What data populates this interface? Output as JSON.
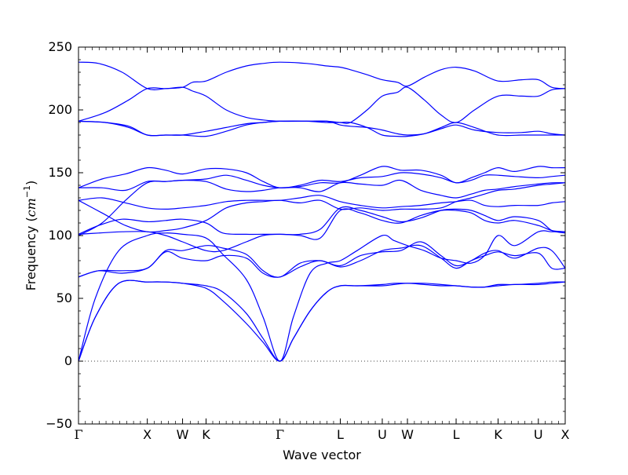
{
  "chart_data": {
    "type": "line",
    "title": "",
    "xlabel": "Wave vector",
    "ylabel_text": "Frequency (",
    "ylabel_unit": "cm",
    "ylabel_exp": "−1",
    "ylabel_close": ")",
    "ylim": [
      -50,
      250
    ],
    "y_ticks": [
      -50,
      0,
      50,
      100,
      150,
      200,
      250
    ],
    "y_tick_labels": [
      "−50",
      "0",
      "50",
      "100",
      "150",
      "200",
      "250"
    ],
    "xlim": [
      0,
      14.5
    ],
    "high_symmetry_points": [
      {
        "label": "Γ",
        "x": 0
      },
      {
        "label": "X",
        "x": 2.05
      },
      {
        "label": "W",
        "x": 3.1
      },
      {
        "label": "K",
        "x": 3.8
      },
      {
        "label": "Γ",
        "x": 6.0
      },
      {
        "label": "L",
        "x": 7.8
      },
      {
        "label": "U",
        "x": 9.05
      },
      {
        "label": "W",
        "x": 9.8
      },
      {
        "label": "L",
        "x": 11.25
      },
      {
        "label": "K",
        "x": 12.5
      },
      {
        "label": "U",
        "x": 13.7
      },
      {
        "label": "X",
        "x": 14.5
      }
    ],
    "zero_line": {
      "y": 0,
      "style": "dotted"
    },
    "line_color": "#0000ff",
    "series": [
      {
        "x": [
          0,
          0.5,
          1.2,
          2.05,
          2.6,
          3.1,
          3.8,
          4.3,
          5.0,
          5.5,
          6.0,
          6.4,
          6.9,
          7.4,
          7.8,
          8.3,
          9.05,
          9.4,
          9.8,
          10.3,
          10.8,
          11.25,
          11.7,
          12.1,
          12.5,
          13.0,
          13.7,
          14.1,
          14.5
        ],
        "y": [
          0,
          35,
          62,
          63,
          63,
          62,
          58,
          48,
          30,
          15,
          0,
          18,
          40,
          55,
          60,
          60,
          60,
          61,
          62,
          61,
          60,
          60,
          59,
          59,
          60,
          61,
          61,
          62,
          63
        ]
      },
      {
        "x": [
          0,
          0.5,
          1.2,
          2.05,
          2.6,
          3.1,
          3.8,
          4.3,
          5.0,
          5.5,
          6.0,
          6.4,
          6.9,
          7.4,
          7.8,
          8.3,
          9.05,
          9.4,
          9.8,
          10.3,
          10.8,
          11.25,
          11.7,
          12.1,
          12.5,
          13.0,
          13.7,
          14.1,
          14.5
        ],
        "y": [
          0,
          35,
          62,
          63,
          63,
          62,
          60,
          55,
          38,
          18,
          0,
          18,
          40,
          55,
          60,
          60,
          61,
          62,
          62,
          62,
          61,
          60,
          59,
          59,
          61,
          61,
          62,
          63,
          63
        ]
      },
      {
        "x": [
          0,
          0.5,
          1.2,
          2.05,
          2.6,
          3.1,
          3.8,
          4.3,
          5.0,
          5.5,
          6.0,
          6.4,
          6.9,
          7.4,
          7.8,
          8.3,
          9.05,
          9.4,
          9.8,
          10.3,
          10.8,
          11.25,
          11.7,
          12.1,
          12.5,
          13.0,
          13.7,
          14.1,
          14.5
        ],
        "y": [
          0,
          50,
          88,
          100,
          102,
          101,
          98,
          85,
          65,
          35,
          0,
          35,
          70,
          78,
          80,
          88,
          100,
          96,
          92,
          88,
          82,
          80,
          78,
          84,
          100,
          92,
          103,
          103,
          103
        ]
      },
      {
        "x": [
          0,
          0.6,
          1.3,
          2.05,
          2.6,
          3.1,
          3.8,
          4.3,
          5.0,
          5.5,
          6.0,
          6.6,
          7.2,
          7.8,
          8.4,
          9.05,
          9.6,
          10.2,
          10.8,
          11.25,
          11.7,
          12.1,
          12.5,
          13.0,
          13.7,
          14.1,
          14.5
        ],
        "y": [
          67,
          72,
          70,
          74,
          87,
          82,
          80,
          84,
          82,
          70,
          67,
          75,
          80,
          75,
          80,
          88,
          90,
          92,
          82,
          74,
          80,
          84,
          87,
          84,
          86,
          74,
          74
        ]
      },
      {
        "x": [
          0,
          0.6,
          1.3,
          2.05,
          2.6,
          3.1,
          3.8,
          4.3,
          5.0,
          5.5,
          6.0,
          6.6,
          7.2,
          7.8,
          8.4,
          9.05,
          9.6,
          10.2,
          10.8,
          11.25,
          11.7,
          12.1,
          12.5,
          13.0,
          13.7,
          14.1,
          14.5
        ],
        "y": [
          67,
          72,
          72,
          74,
          88,
          88,
          92,
          90,
          85,
          72,
          67,
          78,
          80,
          76,
          84,
          87,
          88,
          95,
          84,
          76,
          80,
          86,
          88,
          82,
          90,
          88,
          74
        ]
      },
      {
        "x": [
          0,
          0.6,
          1.3,
          2.05,
          2.6,
          3.1,
          3.8,
          4.3,
          5.0,
          5.5,
          6.0,
          6.6,
          7.2,
          7.8,
          8.4,
          9.05,
          9.6,
          10.2,
          10.8,
          11.25,
          11.7,
          12.1,
          12.5,
          13.0,
          13.7,
          14.1,
          14.5
        ],
        "y": [
          101,
          102,
          103,
          103,
          100,
          95,
          88,
          88,
          95,
          100,
          101,
          100,
          98,
          120,
          118,
          112,
          110,
          116,
          120,
          120,
          118,
          112,
          110,
          112,
          108,
          104,
          103
        ]
      },
      {
        "x": [
          0,
          0.6,
          1.3,
          2.05,
          2.6,
          3.1,
          3.8,
          4.3,
          5.0,
          5.5,
          6.0,
          6.6,
          7.2,
          7.8,
          8.4,
          9.05,
          9.6,
          10.2,
          10.8,
          11.25,
          11.7,
          12.1,
          12.5,
          13.0,
          13.7,
          14.1,
          14.5
        ],
        "y": [
          101,
          108,
          113,
          111,
          112,
          113,
          110,
          102,
          101,
          101,
          101,
          101,
          105,
          122,
          120,
          115,
          111,
          114,
          120,
          121,
          120,
          116,
          112,
          115,
          112,
          104,
          102
        ]
      },
      {
        "x": [
          0,
          0.7,
          1.4,
          2.05,
          2.6,
          3.1,
          3.8,
          4.4,
          5.0,
          5.5,
          6.0,
          6.6,
          7.2,
          7.8,
          8.4,
          9.05,
          9.6,
          10.2,
          10.8,
          11.25,
          11.7,
          12.1,
          12.5,
          13.0,
          13.7,
          14.1,
          14.5
        ],
        "y": [
          128,
          130,
          126,
          122,
          121,
          122,
          124,
          127,
          128,
          128,
          128,
          130,
          132,
          127,
          124,
          122,
          123,
          124,
          126,
          127,
          128,
          124,
          123,
          124,
          124,
          126,
          127
        ]
      },
      {
        "x": [
          0,
          0.7,
          1.4,
          2.05,
          2.6,
          3.1,
          3.8,
          4.4,
          5.0,
          5.5,
          6.0,
          6.6,
          7.2,
          7.8,
          8.4,
          9.05,
          9.6,
          10.2,
          10.8,
          11.25,
          11.7,
          12.1,
          12.5,
          13.0,
          13.7,
          14.1,
          14.5
        ],
        "y": [
          128,
          118,
          108,
          103,
          104,
          106,
          112,
          122,
          126,
          127,
          128,
          126,
          128,
          121,
          122,
          120,
          121,
          121,
          122,
          127,
          130,
          133,
          136,
          137,
          140,
          141,
          142
        ]
      },
      {
        "x": [
          0,
          0.7,
          1.4,
          2.05,
          2.6,
          3.1,
          3.8,
          4.4,
          5.0,
          5.5,
          6.0,
          6.6,
          7.2,
          7.8,
          8.4,
          9.05,
          9.6,
          10.2,
          10.8,
          11.25,
          11.7,
          12.1,
          12.5,
          13.0,
          13.7,
          14.1,
          14.5
        ],
        "y": [
          138,
          138,
          136,
          143,
          143,
          144,
          143,
          137,
          135,
          136,
          138,
          138,
          135,
          142,
          141,
          140,
          144,
          136,
          132,
          130,
          133,
          136,
          137,
          139,
          141,
          142,
          142
        ]
      },
      {
        "x": [
          0,
          0.7,
          1.4,
          2.05,
          2.6,
          3.1,
          3.8,
          4.4,
          5.0,
          5.5,
          6.0,
          6.6,
          7.2,
          7.8,
          8.4,
          9.05,
          9.6,
          10.2,
          10.8,
          11.25,
          11.7,
          12.1,
          12.5,
          13.0,
          13.7,
          14.1,
          14.5
        ],
        "y": [
          138,
          145,
          149,
          154,
          152,
          149,
          153,
          153,
          150,
          143,
          138,
          140,
          144,
          143,
          146,
          147,
          150,
          149,
          146,
          142,
          144,
          148,
          148,
          147,
          146,
          147,
          148
        ]
      },
      {
        "x": [
          0,
          0.7,
          1.4,
          2.05,
          2.6,
          3.1,
          3.8,
          4.4,
          5.0,
          5.5,
          6.0,
          6.6,
          7.2,
          7.8,
          8.4,
          9.05,
          9.6,
          10.2,
          10.8,
          11.25,
          11.7,
          12.1,
          12.5,
          13.0,
          13.7,
          14.1,
          14.5
        ],
        "y": [
          100,
          110,
          128,
          142,
          143,
          144,
          145,
          148,
          144,
          140,
          138,
          139,
          142,
          142,
          148,
          155,
          152,
          152,
          148,
          142,
          146,
          150,
          154,
          151,
          155,
          154,
          154
        ]
      },
      {
        "x": [
          0,
          0.8,
          1.5,
          2.05,
          2.6,
          3.1,
          3.8,
          4.4,
          5.0,
          5.5,
          6.0,
          6.8,
          7.4,
          7.8,
          8.1,
          8.6,
          9.05,
          9.5,
          9.8,
          10.3,
          10.8,
          11.25,
          11.8,
          12.5,
          13.2,
          13.7,
          14.1,
          14.5
        ],
        "y": [
          191,
          190,
          186,
          180,
          180,
          180,
          179,
          183,
          188,
          190,
          191,
          191,
          191,
          188,
          187,
          186,
          184,
          181,
          180,
          181,
          185,
          188,
          184,
          182,
          182,
          183,
          181,
          180
        ]
      },
      {
        "x": [
          0,
          0.8,
          1.5,
          2.05,
          2.6,
          3.1,
          3.8,
          4.4,
          5.0,
          5.5,
          6.0,
          6.8,
          7.4,
          7.8,
          8.1,
          8.6,
          9.05,
          9.5,
          9.8,
          10.3,
          10.8,
          11.25,
          11.8,
          12.5,
          13.2,
          13.7,
          14.1,
          14.5
        ],
        "y": [
          191,
          190,
          187,
          180,
          180,
          180,
          183,
          186,
          189,
          190,
          191,
          191,
          190,
          190,
          190,
          186,
          180,
          179,
          179,
          181,
          186,
          190,
          186,
          180,
          180,
          180,
          180,
          180
        ]
      },
      {
        "x": [
          0,
          0.8,
          1.5,
          2.05,
          2.6,
          3.1,
          3.4,
          3.8,
          4.4,
          5.0,
          5.5,
          6.0,
          6.8,
          7.4,
          7.8,
          8.1,
          8.6,
          9.05,
          9.5,
          9.8,
          10.3,
          10.8,
          11.25,
          11.8,
          12.5,
          13.2,
          13.7,
          14.1,
          14.5
        ],
        "y": [
          191,
          198,
          208,
          217,
          217,
          218,
          215,
          211,
          200,
          194,
          192,
          191,
          191,
          191,
          190,
          190,
          200,
          211,
          214,
          218,
          208,
          196,
          190,
          200,
          211,
          211,
          211,
          216,
          217
        ]
      },
      {
        "x": [
          0,
          0.6,
          1.3,
          2.05,
          2.6,
          3.1,
          3.4,
          3.8,
          4.4,
          5.0,
          5.5,
          6.0,
          6.8,
          7.4,
          7.8,
          8.1,
          8.6,
          9.05,
          9.5,
          9.8,
          10.3,
          10.8,
          11.25,
          11.8,
          12.5,
          13.2,
          13.7,
          14.1,
          14.5
        ],
        "y": [
          238,
          237,
          230,
          217,
          217,
          218,
          222,
          223,
          230,
          235,
          237,
          238,
          237,
          235,
          234,
          232,
          228,
          224,
          222,
          219,
          226,
          232,
          234,
          231,
          223,
          224,
          224,
          218,
          217
        ]
      }
    ]
  }
}
